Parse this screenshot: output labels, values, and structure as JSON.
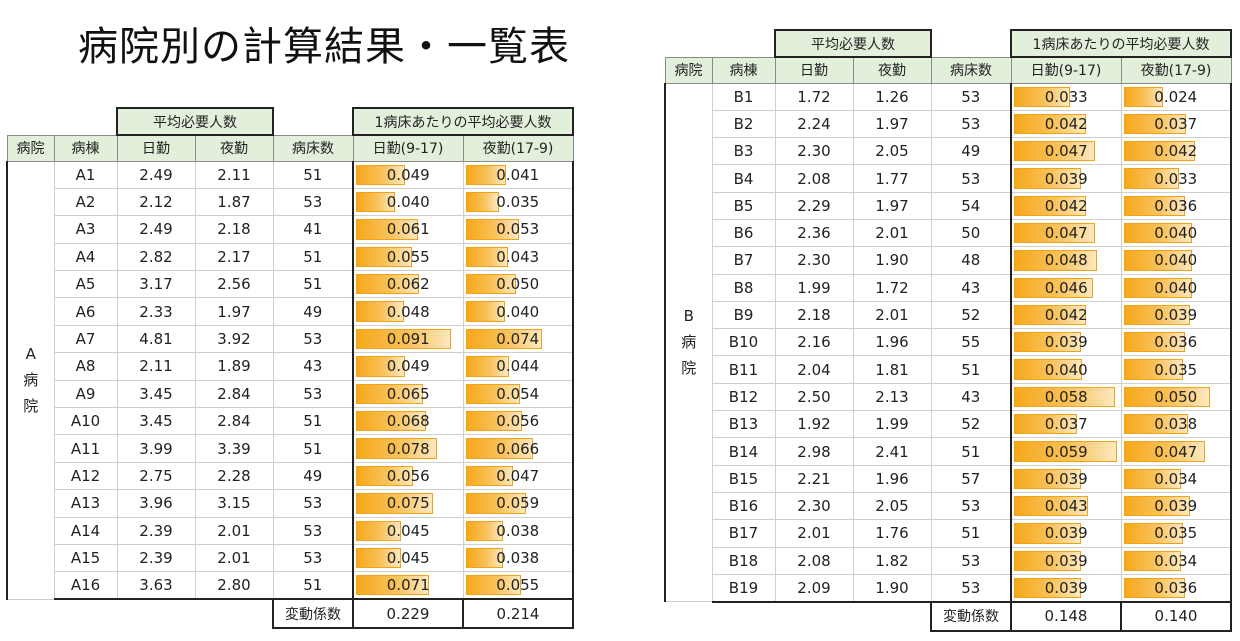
{
  "title": "病院別の計算結果・一覧表",
  "colors": {
    "header_bg": "#e2efda",
    "bar": "#f6a81b"
  },
  "headers": {
    "group_avg": "平均必要人数",
    "group_per_bed": "1病床あたりの平均必要人数",
    "hospital": "病院",
    "ward": "病棟",
    "day": "日勤",
    "night": "夜勤",
    "beds": "病床数",
    "day_per_bed": "日勤(9-17)",
    "night_per_bed": "夜勤(17-9)",
    "cv_label": "変動係数"
  },
  "table_a": {
    "hospital_chars": [
      "A",
      "病",
      "院"
    ],
    "bar_scale_max": 0.1,
    "rows": [
      {
        "ward": "A1",
        "day": "2.49",
        "night": "2.11",
        "beds": "51",
        "day_pb": "0.049",
        "night_pb": "0.041"
      },
      {
        "ward": "A2",
        "day": "2.12",
        "night": "1.87",
        "beds": "53",
        "day_pb": "0.040",
        "night_pb": "0.035"
      },
      {
        "ward": "A3",
        "day": "2.49",
        "night": "2.18",
        "beds": "41",
        "day_pb": "0.061",
        "night_pb": "0.053"
      },
      {
        "ward": "A4",
        "day": "2.82",
        "night": "2.17",
        "beds": "51",
        "day_pb": "0.055",
        "night_pb": "0.043"
      },
      {
        "ward": "A5",
        "day": "3.17",
        "night": "2.56",
        "beds": "51",
        "day_pb": "0.062",
        "night_pb": "0.050"
      },
      {
        "ward": "A6",
        "day": "2.33",
        "night": "1.97",
        "beds": "49",
        "day_pb": "0.048",
        "night_pb": "0.040"
      },
      {
        "ward": "A7",
        "day": "4.81",
        "night": "3.92",
        "beds": "53",
        "day_pb": "0.091",
        "night_pb": "0.074"
      },
      {
        "ward": "A8",
        "day": "2.11",
        "night": "1.89",
        "beds": "43",
        "day_pb": "0.049",
        "night_pb": "0.044"
      },
      {
        "ward": "A9",
        "day": "3.45",
        "night": "2.84",
        "beds": "53",
        "day_pb": "0.065",
        "night_pb": "0.054"
      },
      {
        "ward": "A10",
        "day": "3.45",
        "night": "2.84",
        "beds": "51",
        "day_pb": "0.068",
        "night_pb": "0.056"
      },
      {
        "ward": "A11",
        "day": "3.99",
        "night": "3.39",
        "beds": "51",
        "day_pb": "0.078",
        "night_pb": "0.066"
      },
      {
        "ward": "A12",
        "day": "2.75",
        "night": "2.28",
        "beds": "49",
        "day_pb": "0.056",
        "night_pb": "0.047"
      },
      {
        "ward": "A13",
        "day": "3.96",
        "night": "3.15",
        "beds": "53",
        "day_pb": "0.075",
        "night_pb": "0.059"
      },
      {
        "ward": "A14",
        "day": "2.39",
        "night": "2.01",
        "beds": "53",
        "day_pb": "0.045",
        "night_pb": "0.038"
      },
      {
        "ward": "A15",
        "day": "2.39",
        "night": "2.01",
        "beds": "53",
        "day_pb": "0.045",
        "night_pb": "0.038"
      },
      {
        "ward": "A16",
        "day": "3.63",
        "night": "2.80",
        "beds": "51",
        "day_pb": "0.071",
        "night_pb": "0.055"
      }
    ],
    "cv_day": "0.229",
    "cv_night": "0.214"
  },
  "table_b": {
    "hospital_chars": [
      "B",
      "病",
      "院"
    ],
    "bar_scale_max": 0.06,
    "rows": [
      {
        "ward": "B1",
        "day": "1.72",
        "night": "1.26",
        "beds": "53",
        "day_pb": "0.033",
        "night_pb": "0.024"
      },
      {
        "ward": "B2",
        "day": "2.24",
        "night": "1.97",
        "beds": "53",
        "day_pb": "0.042",
        "night_pb": "0.037"
      },
      {
        "ward": "B3",
        "day": "2.30",
        "night": "2.05",
        "beds": "49",
        "day_pb": "0.047",
        "night_pb": "0.042"
      },
      {
        "ward": "B4",
        "day": "2.08",
        "night": "1.77",
        "beds": "53",
        "day_pb": "0.039",
        "night_pb": "0.033"
      },
      {
        "ward": "B5",
        "day": "2.29",
        "night": "1.97",
        "beds": "54",
        "day_pb": "0.042",
        "night_pb": "0.036"
      },
      {
        "ward": "B6",
        "day": "2.36",
        "night": "2.01",
        "beds": "50",
        "day_pb": "0.047",
        "night_pb": "0.040"
      },
      {
        "ward": "B7",
        "day": "2.30",
        "night": "1.90",
        "beds": "48",
        "day_pb": "0.048",
        "night_pb": "0.040"
      },
      {
        "ward": "B8",
        "day": "1.99",
        "night": "1.72",
        "beds": "43",
        "day_pb": "0.046",
        "night_pb": "0.040"
      },
      {
        "ward": "B9",
        "day": "2.18",
        "night": "2.01",
        "beds": "52",
        "day_pb": "0.042",
        "night_pb": "0.039"
      },
      {
        "ward": "B10",
        "day": "2.16",
        "night": "1.96",
        "beds": "55",
        "day_pb": "0.039",
        "night_pb": "0.036"
      },
      {
        "ward": "B11",
        "day": "2.04",
        "night": "1.81",
        "beds": "51",
        "day_pb": "0.040",
        "night_pb": "0.035"
      },
      {
        "ward": "B12",
        "day": "2.50",
        "night": "2.13",
        "beds": "43",
        "day_pb": "0.058",
        "night_pb": "0.050"
      },
      {
        "ward": "B13",
        "day": "1.92",
        "night": "1.99",
        "beds": "52",
        "day_pb": "0.037",
        "night_pb": "0.038"
      },
      {
        "ward": "B14",
        "day": "2.98",
        "night": "2.41",
        "beds": "51",
        "day_pb": "0.059",
        "night_pb": "0.047"
      },
      {
        "ward": "B15",
        "day": "2.21",
        "night": "1.96",
        "beds": "57",
        "day_pb": "0.039",
        "night_pb": "0.034"
      },
      {
        "ward": "B16",
        "day": "2.30",
        "night": "2.05",
        "beds": "53",
        "day_pb": "0.043",
        "night_pb": "0.039"
      },
      {
        "ward": "B17",
        "day": "2.01",
        "night": "1.76",
        "beds": "51",
        "day_pb": "0.039",
        "night_pb": "0.035"
      },
      {
        "ward": "B18",
        "day": "2.08",
        "night": "1.82",
        "beds": "53",
        "day_pb": "0.039",
        "night_pb": "0.034"
      },
      {
        "ward": "B19",
        "day": "2.09",
        "night": "1.90",
        "beds": "53",
        "day_pb": "0.039",
        "night_pb": "0.036"
      }
    ],
    "cv_day": "0.148",
    "cv_night": "0.140"
  }
}
